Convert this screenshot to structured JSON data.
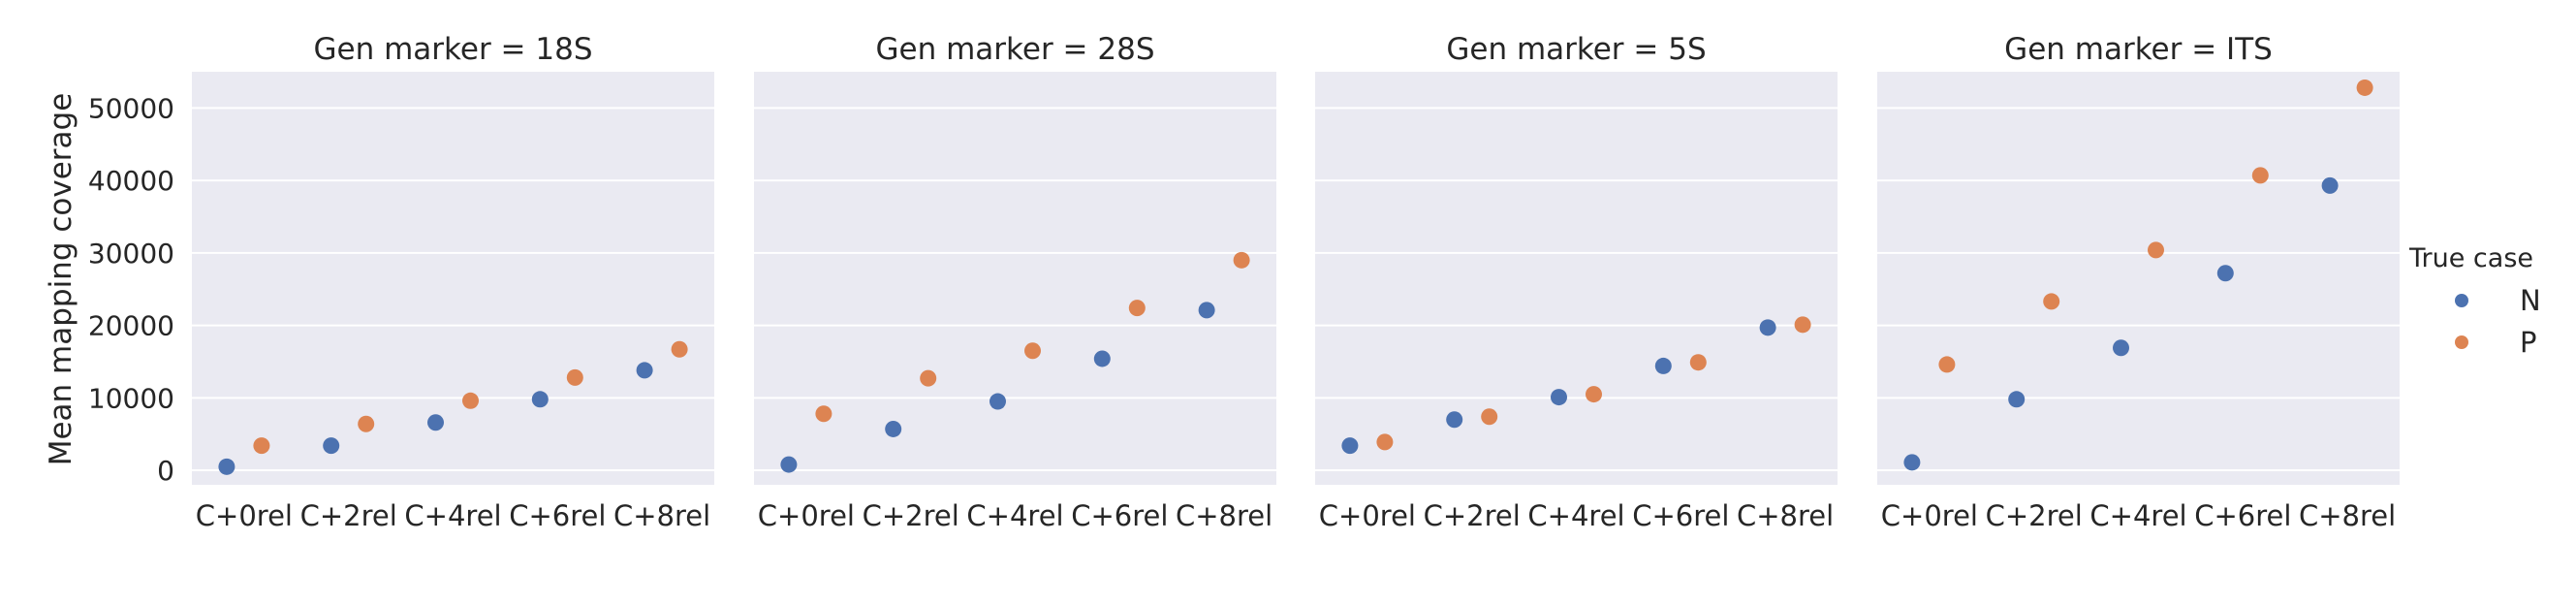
{
  "chart_data": {
    "type": "scatter",
    "ylabel": "Mean mapping coverage",
    "ylim": [
      -2000,
      55000
    ],
    "yticks": [
      0,
      10000,
      20000,
      30000,
      40000,
      50000
    ],
    "grid": true,
    "categories": [
      "C+0rel",
      "C+2rel",
      "C+4rel",
      "C+6rel",
      "C+8rel"
    ],
    "legend": {
      "title": "True case",
      "placement": "right",
      "entries": [
        {
          "name": "N",
          "color": "#4c72b0"
        },
        {
          "name": "P",
          "color": "#dd8452"
        }
      ]
    },
    "panels": [
      {
        "title": "Gen marker = 18S",
        "series": [
          {
            "name": "N",
            "values": [
              500,
              3400,
              6600,
              9800,
              13800
            ]
          },
          {
            "name": "P",
            "values": [
              3400,
              6400,
              9600,
              12800,
              16700
            ]
          }
        ]
      },
      {
        "title": "Gen marker = 28S",
        "series": [
          {
            "name": "N",
            "values": [
              800,
              5700,
              9500,
              15400,
              22100
            ]
          },
          {
            "name": "P",
            "values": [
              7800,
              12700,
              16500,
              22400,
              29000
            ]
          }
        ]
      },
      {
        "title": "Gen marker = 5S",
        "series": [
          {
            "name": "N",
            "values": [
              3400,
              7000,
              10100,
              14400,
              19700
            ]
          },
          {
            "name": "P",
            "values": [
              3900,
              7400,
              10500,
              14900,
              20100
            ]
          }
        ]
      },
      {
        "title": "Gen marker = ITS",
        "series": [
          {
            "name": "N",
            "values": [
              1100,
              9800,
              16900,
              27200,
              39300
            ]
          },
          {
            "name": "P",
            "values": [
              14600,
              23300,
              30400,
              40700,
              52800
            ]
          }
        ]
      }
    ]
  }
}
